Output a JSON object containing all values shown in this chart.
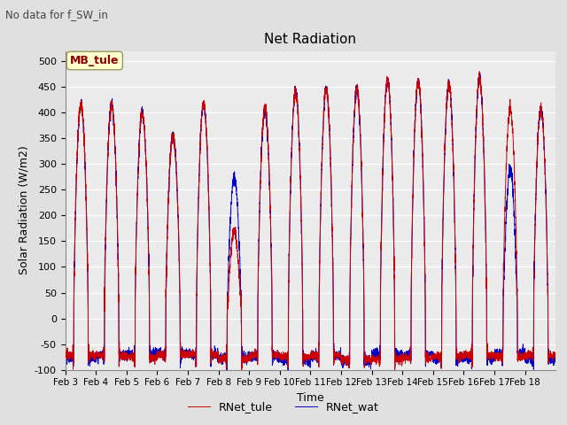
{
  "title": "Net Radiation",
  "suptitle": "No data for f_SW_in",
  "xlabel": "Time",
  "ylabel": "Solar Radiation (W/m2)",
  "ylim": [
    -100,
    520
  ],
  "yticks": [
    -100,
    -50,
    0,
    50,
    100,
    150,
    200,
    250,
    300,
    350,
    400,
    450,
    500
  ],
  "n_days": 16,
  "color_tule": "#cc0000",
  "color_wat": "#0000cc",
  "legend_labels": [
    "RNet_tule",
    "RNet_wat"
  ],
  "annotation_text": "MB_tule",
  "annotation_color": "#8b0000",
  "bg_color": "#e0e0e0",
  "plot_bg": "#ebebeb",
  "grid_color": "#ffffff",
  "night_val": -75,
  "peaks_tule": [
    415,
    415,
    400,
    355,
    415,
    170,
    405,
    440,
    445,
    445,
    465,
    460,
    455,
    465,
    405,
    408
  ],
  "peaks_wat": [
    415,
    415,
    400,
    355,
    415,
    275,
    405,
    440,
    445,
    445,
    465,
    460,
    455,
    465,
    290,
    408
  ],
  "cloudy_days_tule": [
    5
  ],
  "cloudy_days_wat": [
    5,
    14
  ]
}
